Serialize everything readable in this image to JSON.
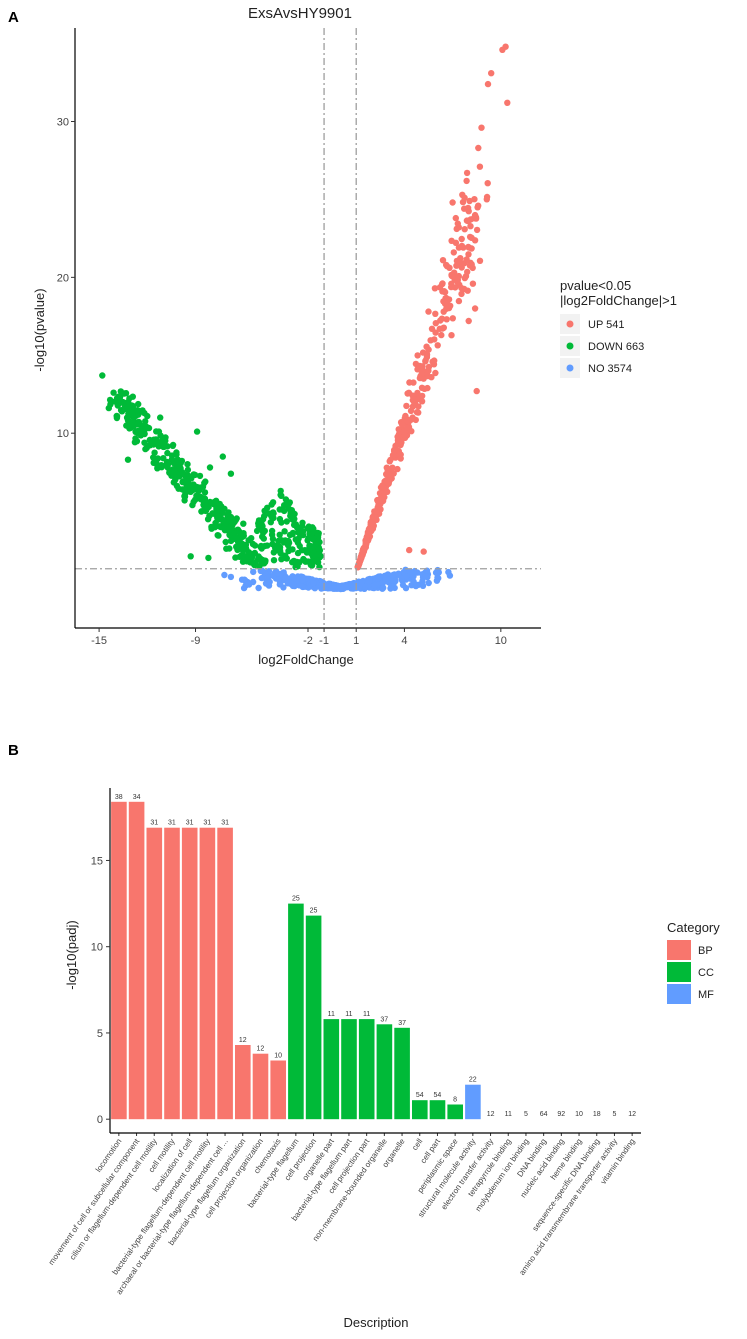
{
  "panel_labels": {
    "a": "A",
    "b": "B"
  },
  "chart_data": [
    {
      "type": "scatter",
      "panel": "A",
      "title": "ExsAvsHY9901",
      "xlabel": "log2FoldChange",
      "ylabel": "-log10(pvalue)",
      "xlim": [
        -16.5,
        12.5
      ],
      "ylim": [
        -2.5,
        36
      ],
      "xticks": [
        -15,
        -9,
        -2,
        -1,
        1,
        4,
        10
      ],
      "xtick_labels": [
        "-15",
        "-9",
        "-2",
        "-1",
        "1",
        "4",
        "10"
      ],
      "yticks": [
        10,
        20,
        30
      ],
      "ytick_labels": [
        "10",
        "20",
        "30"
      ],
      "vlines": [
        -1,
        1
      ],
      "hline": 1.3,
      "legend": {
        "title_line1": "pvalue<0.05",
        "title_line2": "|log2FoldChange|>1",
        "entries": [
          {
            "label": "UP 541",
            "color": "#F8766D"
          },
          {
            "label": "DOWN 663",
            "color": "#00BA38"
          },
          {
            "label": "NO 3574",
            "color": "#619CFF"
          }
        ]
      },
      "series": [
        {
          "name": "UP",
          "color": "#F8766D",
          "count": 541,
          "highlight_points": [
            [
              10.3,
              34.8
            ],
            [
              10.1,
              34.6
            ],
            [
              9.4,
              33.1
            ],
            [
              9.2,
              32.4
            ],
            [
              10.4,
              31.2
            ],
            [
              8.8,
              29.6
            ],
            [
              8.6,
              28.3
            ],
            [
              8.7,
              27.1
            ],
            [
              7.9,
              26.7
            ],
            [
              7.6,
              25.3
            ],
            [
              7.0,
              24.8
            ],
            [
              8.4,
              18.0
            ],
            [
              8.0,
              17.2
            ],
            [
              8.5,
              12.7
            ],
            [
              7.2,
              23.8
            ],
            [
              6.4,
              21.1
            ],
            [
              5.9,
              19.3
            ],
            [
              5.5,
              17.8
            ],
            [
              6.2,
              16.7
            ],
            [
              4.3,
              2.5
            ],
            [
              5.2,
              2.4
            ]
          ]
        },
        {
          "name": "DOWN",
          "color": "#00BA38",
          "count": 663,
          "highlight_points": [
            [
              -14.8,
              13.7
            ],
            [
              -14.1,
              12.6
            ],
            [
              -13.7,
              12.3
            ],
            [
              -13.1,
              11.8
            ],
            [
              -12.0,
              11.1
            ],
            [
              -11.2,
              11.0
            ],
            [
              -13.2,
              8.3
            ],
            [
              -11.6,
              8.1
            ],
            [
              -8.9,
              10.1
            ],
            [
              -8.1,
              7.8
            ],
            [
              -7.3,
              8.5
            ],
            [
              -6.8,
              7.4
            ],
            [
              -3.7,
              6.3
            ],
            [
              -9.3,
              2.1
            ],
            [
              -8.2,
              2.0
            ],
            [
              -6.9,
              2.6
            ]
          ]
        },
        {
          "name": "NO",
          "color": "#619CFF",
          "count": 3574,
          "highlight_points": [
            [
              -7.2,
              0.9
            ],
            [
              -6.1,
              0.6
            ],
            [
              -3.2,
              0.4
            ],
            [
              2.4,
              0.8
            ],
            [
              3.3,
              0.9
            ]
          ]
        }
      ]
    },
    {
      "type": "bar",
      "panel": "B",
      "xlabel": "Description",
      "ylabel": "-log10(padj)",
      "ylim": [
        -0.8,
        19.2
      ],
      "yticks": [
        0,
        5,
        10,
        15
      ],
      "ytick_labels": [
        "0",
        "5",
        "10",
        "15"
      ],
      "legend": {
        "title": "Category",
        "entries": [
          {
            "label": "BP",
            "color": "#F8766D"
          },
          {
            "label": "CC",
            "color": "#00BA38"
          },
          {
            "label": "MF",
            "color": "#619CFF"
          }
        ]
      },
      "bars": [
        {
          "category": "locomotion",
          "group": "BP",
          "value": 18.4,
          "label": "38"
        },
        {
          "category": "movement of cell or subcellular component",
          "group": "BP",
          "value": 18.4,
          "label": "34"
        },
        {
          "category": "cilium or flagellum-dependent cell motility",
          "group": "BP",
          "value": 16.9,
          "label": "31"
        },
        {
          "category": "cell motility",
          "group": "BP",
          "value": 16.9,
          "label": "31"
        },
        {
          "category": "localization of cell",
          "group": "BP",
          "value": 16.9,
          "label": "31"
        },
        {
          "category": "bacterial-type flagellum-dependent cell motility",
          "group": "BP",
          "value": 16.9,
          "label": "31"
        },
        {
          "category": "archaeal or bacterial-type flagellum-dependent cell ...",
          "group": "BP",
          "value": 16.9,
          "label": "31"
        },
        {
          "category": "bacterial-type flagellum organization",
          "group": "BP",
          "value": 4.3,
          "label": "12"
        },
        {
          "category": "cell projection organization",
          "group": "BP",
          "value": 3.8,
          "label": "12"
        },
        {
          "category": "chemotaxis",
          "group": "BP",
          "value": 3.4,
          "label": "10"
        },
        {
          "category": "bacterial-type flagellum",
          "group": "CC",
          "value": 12.5,
          "label": "25"
        },
        {
          "category": "cell projection",
          "group": "CC",
          "value": 11.8,
          "label": "25"
        },
        {
          "category": "organelle part",
          "group": "CC",
          "value": 5.8,
          "label": "11"
        },
        {
          "category": "bacterial-type flagellum part",
          "group": "CC",
          "value": 5.8,
          "label": "11"
        },
        {
          "category": "cell projection part",
          "group": "CC",
          "value": 5.8,
          "label": "11"
        },
        {
          "category": "non-membrane-bounded organelle",
          "group": "CC",
          "value": 5.5,
          "label": "37"
        },
        {
          "category": "organelle",
          "group": "CC",
          "value": 5.3,
          "label": "37"
        },
        {
          "category": "cell",
          "group": "CC",
          "value": 1.1,
          "label": "54"
        },
        {
          "category": "cell part",
          "group": "CC",
          "value": 1.1,
          "label": "54"
        },
        {
          "category": "periplasmic space",
          "group": "CC",
          "value": 0.85,
          "label": "8"
        },
        {
          "category": "structural molecule activity",
          "group": "MF",
          "value": 2.0,
          "label": "22"
        },
        {
          "category": "electron transfer activity",
          "group": "MF",
          "value": 0.0,
          "label": "12"
        },
        {
          "category": "tetrapyrrole binding",
          "group": "MF",
          "value": 0.0,
          "label": "11"
        },
        {
          "category": "molybdenum ion binding",
          "group": "MF",
          "value": 0.0,
          "label": "5"
        },
        {
          "category": "DNA binding",
          "group": "MF",
          "value": 0.0,
          "label": "64"
        },
        {
          "category": "nucleic acid binding",
          "group": "MF",
          "value": 0.0,
          "label": "92"
        },
        {
          "category": "heme binding",
          "group": "MF",
          "value": 0.0,
          "label": "10"
        },
        {
          "category": "sequence-specific DNA binding",
          "group": "MF",
          "value": 0.0,
          "label": "18"
        },
        {
          "category": "amino acid transmembrane transporter activity",
          "group": "MF",
          "value": 0.0,
          "label": "5"
        },
        {
          "category": "vitamin binding",
          "group": "MF",
          "value": 0.0,
          "label": "12"
        }
      ]
    }
  ]
}
